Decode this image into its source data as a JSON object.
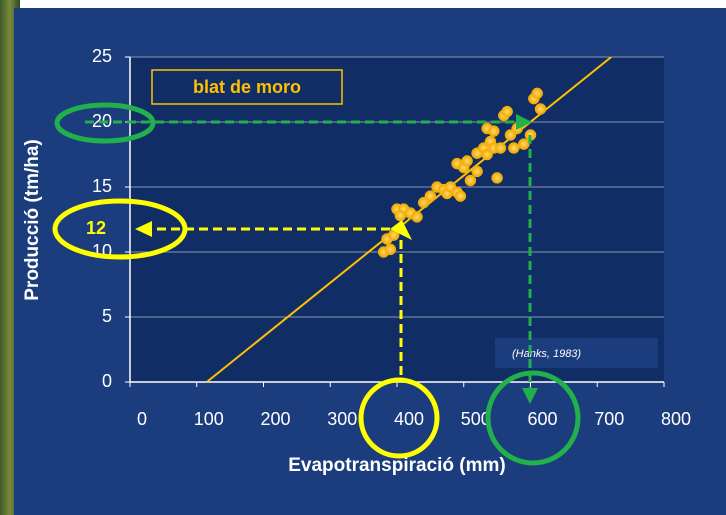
{
  "chart_data": {
    "type": "scatter",
    "title": "blat de moro",
    "xlabel": "Evapotranspiració (mm)",
    "ylabel": "Producció (tm/ha)",
    "annotation": "(Hanks, 1983)",
    "highlight_label": "12",
    "xlim": [
      0,
      800
    ],
    "xticks": [
      0,
      100,
      200,
      300,
      400,
      500,
      600,
      700,
      800
    ],
    "ylim": [
      0,
      25
    ],
    "yticks": [
      0,
      5,
      10,
      15,
      20,
      25
    ],
    "grid": true,
    "color": "#ffc000",
    "line_color": "#ffc000",
    "x": [
      380,
      390,
      385,
      395,
      400,
      410,
      405,
      420,
      430,
      440,
      450,
      460,
      470,
      475,
      480,
      490,
      495,
      490,
      500,
      505,
      510,
      520,
      520,
      530,
      535,
      540,
      545,
      550,
      555,
      560,
      565,
      570,
      575,
      580,
      590,
      600,
      605,
      610,
      615,
      535,
      545
    ],
    "values": [
      10,
      10.2,
      11,
      11.3,
      13.3,
      13.3,
      12.8,
      13,
      12.7,
      13.8,
      14.3,
      15,
      14.8,
      14.5,
      15,
      14.6,
      14.3,
      16.8,
      16.5,
      17,
      15.5,
      16.2,
      17.6,
      18,
      17.5,
      18.5,
      18,
      15.7,
      18,
      20.5,
      20.8,
      19,
      18,
      19.5,
      18.3,
      19,
      21.8,
      22.2,
      21,
      19.5,
      19.3
    ],
    "fit_line": {
      "x": [
        115,
        721
      ],
      "values": [
        0,
        25
      ]
    }
  }
}
